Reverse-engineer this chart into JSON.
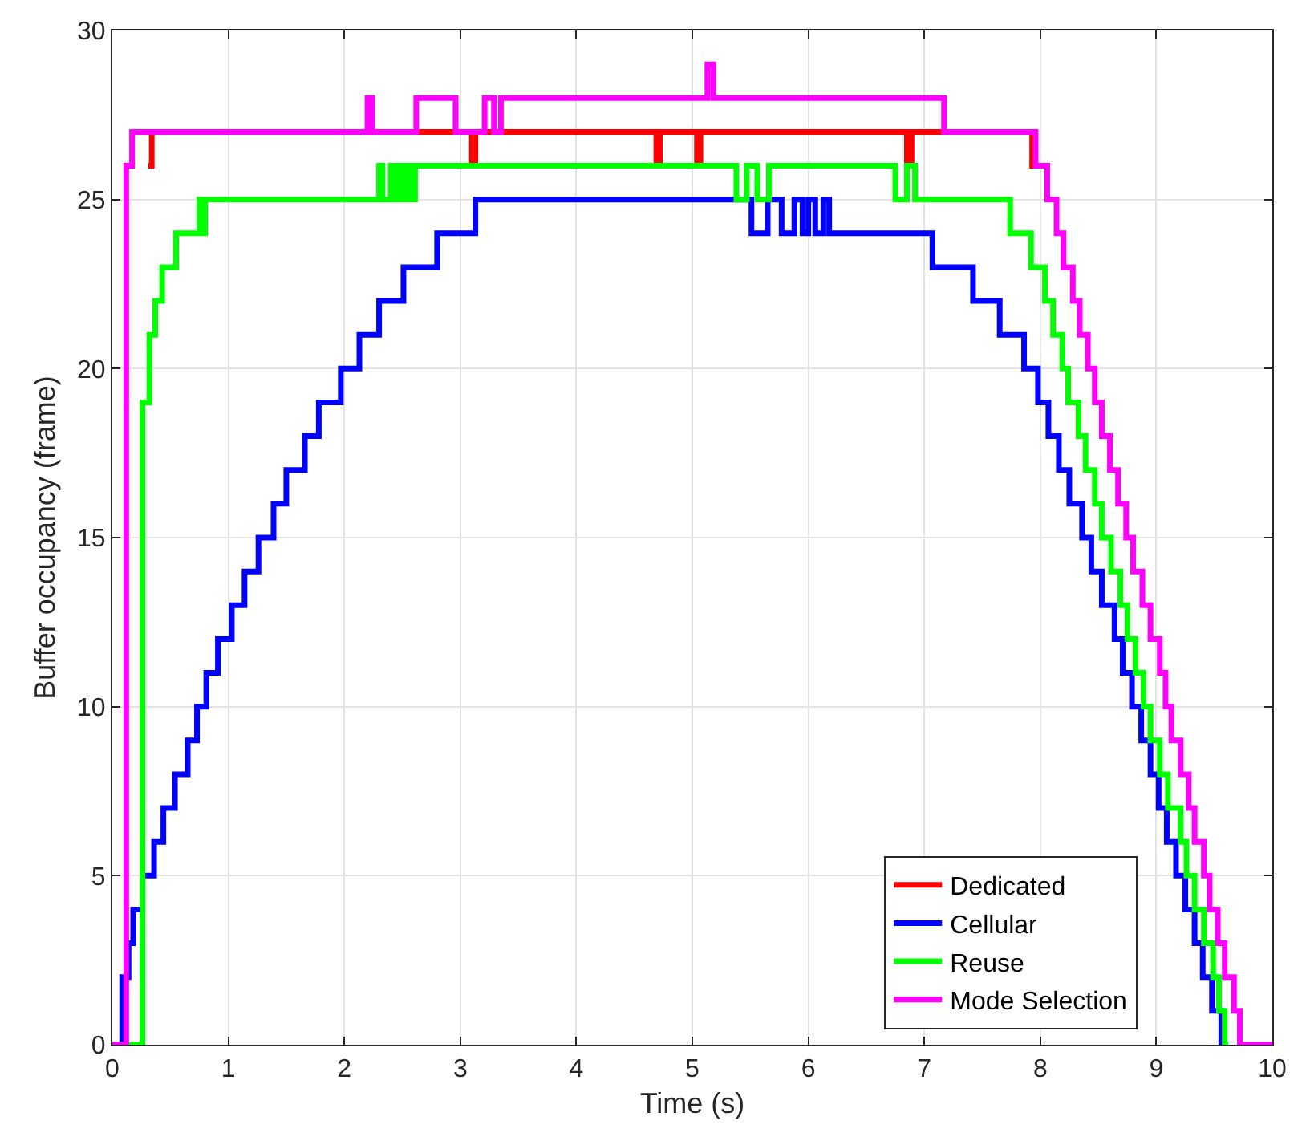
{
  "chart_data": {
    "type": "step",
    "xlabel": "Time (s)",
    "ylabel": "Buffer occupancy (frame)",
    "xlim": [
      0,
      10
    ],
    "ylim": [
      0,
      30
    ],
    "xticks": [
      0,
      1,
      2,
      3,
      4,
      5,
      6,
      7,
      8,
      9,
      10
    ],
    "yticks": [
      0,
      5,
      10,
      15,
      20,
      25,
      30
    ],
    "grid": true,
    "legend": "bottom right",
    "line_style": "solid",
    "marker": "none",
    "series": [
      {
        "name": "Dedicated",
        "color": "#ff0000",
        "x": [
          0.31,
          0.34,
          3.1,
          3.13,
          4.69,
          4.72,
          5.04,
          5.07,
          6.85,
          6.89,
          7.93,
          7.96
        ],
        "values": [
          26,
          27,
          26,
          27,
          26,
          27,
          26,
          27,
          26,
          27,
          26,
          26
        ]
      },
      {
        "name": "Cellular",
        "color": "#0000ff",
        "x": [
          0,
          0.085,
          0.14,
          0.18,
          0.26,
          0.36,
          0.44,
          0.54,
          0.65,
          0.73,
          0.81,
          0.91,
          1.03,
          1.14,
          1.26,
          1.39,
          1.5,
          1.66,
          1.78,
          1.97,
          2.13,
          2.3,
          2.51,
          2.8,
          3.13,
          5.51,
          5.65,
          5.77,
          5.88,
          5.95,
          6.0,
          6.06,
          6.13,
          6.18,
          7.07,
          7.42,
          7.65,
          7.86,
          7.98,
          8.07,
          8.16,
          8.25,
          8.36,
          8.44,
          8.53,
          8.64,
          8.71,
          8.79,
          8.87,
          8.95,
          9.02,
          9.09,
          9.17,
          9.25,
          9.33,
          9.4,
          9.48,
          9.56,
          9.62
        ],
        "values": [
          0,
          2,
          3,
          4,
          5,
          6,
          7,
          8,
          9,
          10,
          11,
          12,
          13,
          14,
          15,
          16,
          17,
          18,
          19,
          20,
          21,
          22,
          23,
          24,
          25,
          24,
          25,
          24,
          25,
          24,
          25,
          24,
          25,
          24,
          23,
          22,
          21,
          20,
          19,
          18,
          17,
          16,
          15,
          14,
          13,
          12,
          11,
          10,
          9,
          8,
          7,
          6,
          5,
          4,
          3,
          2,
          1,
          0,
          0
        ]
      },
      {
        "name": "Reuse",
        "color": "#00ff00",
        "x": [
          0,
          0.26,
          0.32,
          0.37,
          0.43,
          0.55,
          0.75,
          0.78,
          0.8,
          0.83,
          2.3,
          2.33,
          2.4,
          2.43,
          2.47,
          2.5,
          2.54,
          2.57,
          2.61,
          2.69,
          5.38,
          5.47,
          5.56,
          5.66,
          6.75,
          6.85,
          6.92,
          7.74,
          7.92,
          8.04,
          8.11,
          8.19,
          8.24,
          8.33,
          8.39,
          8.47,
          8.53,
          8.61,
          8.69,
          8.75,
          8.82,
          8.89,
          8.95,
          9.03,
          9.1,
          9.21,
          9.26,
          9.33,
          9.41,
          9.49,
          9.54,
          9.59,
          9.62
        ],
        "values": [
          0,
          19,
          21,
          22,
          23,
          24,
          25,
          24,
          25,
          25,
          26,
          25,
          26,
          25,
          26,
          25,
          26,
          25,
          26,
          26,
          25,
          26,
          25,
          26,
          25,
          26,
          25,
          24,
          23,
          22,
          21,
          20,
          19,
          18,
          17,
          16,
          15,
          14,
          13,
          12,
          11,
          10,
          9,
          8,
          7,
          6,
          5,
          4,
          3,
          2,
          1,
          0,
          0
        ]
      },
      {
        "name": "Mode Selection",
        "color": "#ff00ff",
        "x": [
          0,
          0.12,
          0.17,
          2.2,
          2.24,
          2.62,
          2.96,
          3.21,
          3.29,
          3.35,
          5.13,
          5.18,
          7.17,
          7.96,
          8.06,
          8.14,
          8.2,
          8.28,
          8.34,
          8.41,
          8.47,
          8.53,
          8.6,
          8.67,
          8.74,
          8.8,
          8.88,
          8.95,
          9.03,
          9.08,
          9.13,
          9.21,
          9.28,
          9.33,
          9.41,
          9.46,
          9.53,
          9.59,
          9.67,
          9.72,
          10
        ],
        "values": [
          0,
          26,
          27,
          28,
          27,
          28,
          27,
          28,
          27,
          28,
          29,
          28,
          27,
          26,
          25,
          24,
          23,
          22,
          21,
          20,
          19,
          18,
          17,
          16,
          15,
          14,
          13,
          12,
          11,
          10,
          9,
          8,
          7,
          6,
          5,
          4,
          3,
          2,
          1,
          0,
          0
        ]
      }
    ]
  }
}
